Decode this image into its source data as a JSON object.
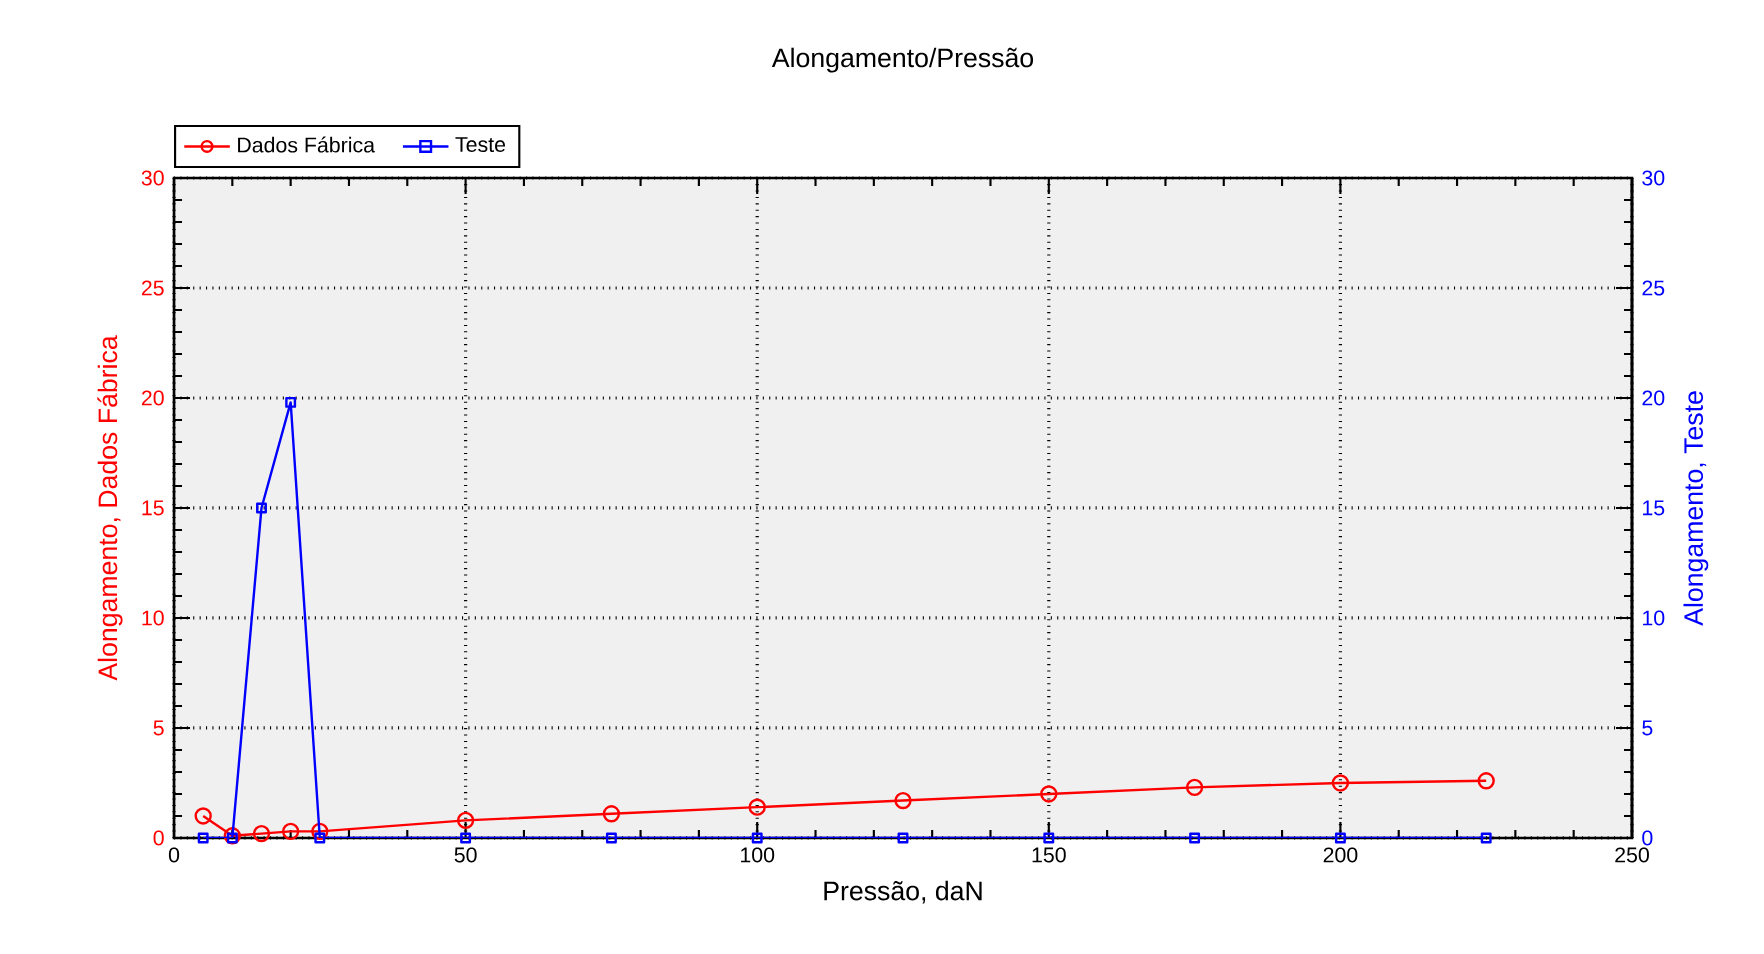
{
  "chart_data": {
    "type": "line",
    "title": "Alongamento/Pressão",
    "xlabel": "Pressão, daN",
    "ylabel": "Alongamento, Dados Fábrica",
    "y2label": "Alongamento, Teste",
    "x": [
      5,
      10,
      15,
      20,
      25,
      50,
      75,
      100,
      125,
      150,
      175,
      200,
      225
    ],
    "series": [
      {
        "name": "Dados Fábrica",
        "color": "#ff0000",
        "marker": "circle",
        "values": [
          1.0,
          0.1,
          0.2,
          0.3,
          0.3,
          0.8,
          1.1,
          1.4,
          1.7,
          2.0,
          2.3,
          2.5,
          2.6
        ]
      },
      {
        "name": "Teste",
        "color": "#0000ff",
        "marker": "square",
        "axis": "y2",
        "values": [
          0,
          0,
          15,
          19.8,
          0,
          0,
          0,
          0,
          0,
          0,
          0,
          0,
          0
        ]
      }
    ],
    "xlim": [
      0,
      250
    ],
    "xticks": [
      0,
      50,
      100,
      150,
      200,
      250
    ],
    "ylim": [
      0,
      30
    ],
    "yticks": [
      0,
      5,
      10,
      15,
      20,
      25,
      30
    ],
    "y2lim": [
      0,
      30
    ],
    "y2ticks": [
      0,
      5,
      10,
      15,
      20,
      25,
      30
    ],
    "grid": true,
    "legend": "top left",
    "line_style": "solid"
  }
}
